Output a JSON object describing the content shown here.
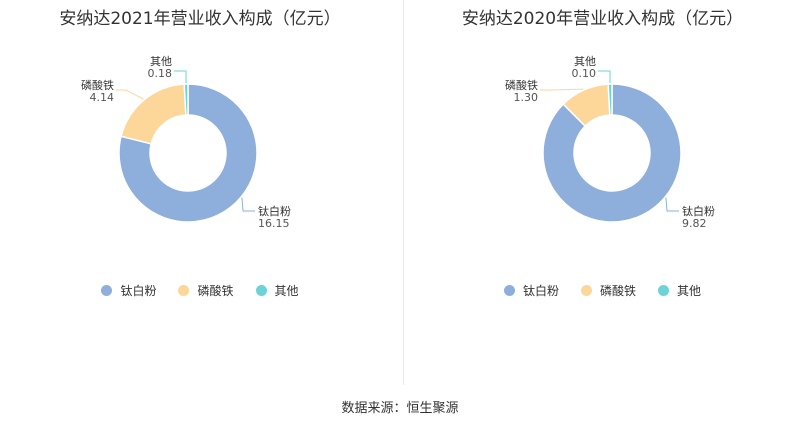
{
  "colors": [
    "#8eaedc",
    "#fcd799",
    "#6dd3d6"
  ],
  "source": "数据来源：恒生聚源",
  "chart_data": [
    {
      "type": "pie",
      "title": "安纳达2021年营业收入构成（亿元）",
      "categories": [
        "钛白粉",
        "磷酸铁",
        "其他"
      ],
      "values": [
        16.15,
        4.14,
        0.18
      ],
      "value_labels": [
        "16.15",
        "4.14",
        "0.18"
      ],
      "legend": "bottom"
    },
    {
      "type": "pie",
      "title": "安纳达2020年营业收入构成（亿元）",
      "categories": [
        "钛白粉",
        "磷酸铁",
        "其他"
      ],
      "values": [
        9.82,
        1.3,
        0.1
      ],
      "value_labels": [
        "9.82",
        "1.30",
        "0.10"
      ],
      "legend": "bottom"
    }
  ]
}
